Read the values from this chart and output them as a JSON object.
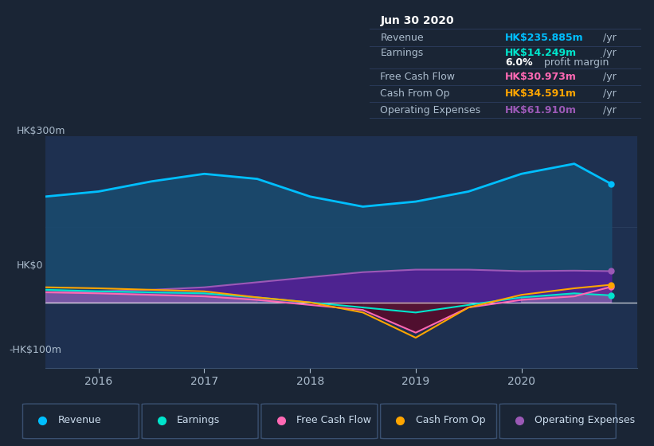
{
  "bg_color": "#1a2535",
  "plot_bg_color": "#1e3050",
  "info_box_bg": "#0d1117",
  "x_years": [
    2015.5,
    2016.0,
    2016.5,
    2017.0,
    2017.5,
    2018.0,
    2018.5,
    2019.0,
    2019.5,
    2020.0,
    2020.5,
    2020.85
  ],
  "revenue": [
    210,
    220,
    240,
    255,
    245,
    210,
    190,
    200,
    220,
    255,
    275,
    235
  ],
  "earnings": [
    25,
    22,
    20,
    18,
    10,
    0,
    -10,
    -20,
    -5,
    10,
    18,
    14
  ],
  "free_cash": [
    20,
    18,
    15,
    12,
    5,
    -5,
    -15,
    -60,
    -10,
    5,
    12,
    31
  ],
  "cash_from_op": [
    30,
    28,
    25,
    22,
    10,
    0,
    -20,
    -70,
    -10,
    15,
    28,
    35
  ],
  "op_expenses": [
    20,
    22,
    25,
    30,
    40,
    50,
    60,
    65,
    65,
    62,
    63,
    62
  ],
  "revenue_color": "#00bfff",
  "earnings_color": "#00e5cc",
  "free_cash_color": "#ff69b4",
  "cash_from_op_color": "#ffa500",
  "op_expenses_color": "#9b59b6",
  "revenue_fill": "#1a4a6e",
  "earnings_fill": "#7a9bbd",
  "free_cash_neg_fill": "#5a0a2a",
  "op_expenses_fill": "#5a1a9a",
  "ylim_min": -130,
  "ylim_max": 330,
  "xlim_min": 2015.5,
  "xlim_max": 2021.1,
  "xticks": [
    2016,
    2017,
    2018,
    2019,
    2020
  ],
  "info_box": {
    "date": "Jun 30 2020",
    "revenue_label": "Revenue",
    "revenue_value": "HK$235.885m",
    "revenue_unit": "/yr",
    "earnings_label": "Earnings",
    "earnings_value": "HK$14.249m",
    "earnings_unit": "/yr",
    "margin_bold": "6.0%",
    "margin_rest": " profit margin",
    "fcf_label": "Free Cash Flow",
    "fcf_value": "HK$30.973m",
    "fcf_unit": "/yr",
    "cashop_label": "Cash From Op",
    "cashop_value": "HK$34.591m",
    "cashop_unit": "/yr",
    "opex_label": "Operating Expenses",
    "opex_value": "HK$61.910m",
    "opex_unit": "/yr"
  },
  "legend_items": [
    {
      "label": "Revenue",
      "color": "#00bfff"
    },
    {
      "label": "Earnings",
      "color": "#00e5cc"
    },
    {
      "label": "Free Cash Flow",
      "color": "#ff69b4"
    },
    {
      "label": "Cash From Op",
      "color": "#ffa500"
    },
    {
      "label": "Operating Expenses",
      "color": "#9b59b6"
    }
  ]
}
